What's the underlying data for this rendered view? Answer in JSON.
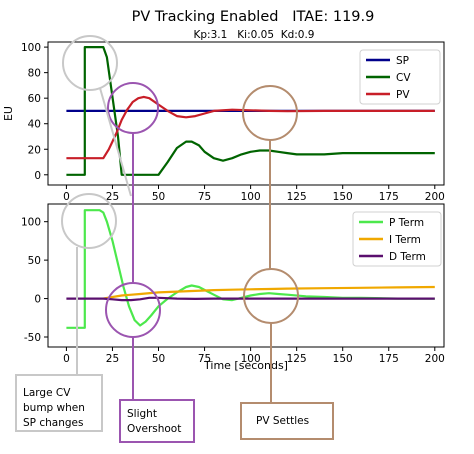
{
  "figure": {
    "title": "PV Tracking Enabled   ITAE: 119.9",
    "params": "Kp:3.1   Ki:0.05  Kd:0.9",
    "xlabel": "Time [seconds]",
    "colors": {
      "sp": "#00008b",
      "cv": "#006400",
      "pv": "#c81e28",
      "p": "#4ce84c",
      "i": "#f0a800",
      "d": "#5a0f6e",
      "gray": "#c8c8c8",
      "purple": "#9b55b0",
      "brown": "#b48c6e"
    }
  },
  "chart_data": [
    {
      "type": "line",
      "ylabel": "EU",
      "xlim": [
        -10,
        205
      ],
      "ylim": [
        -8,
        104
      ],
      "xticks": [
        0,
        25,
        50,
        75,
        100,
        125,
        150,
        175,
        200
      ],
      "yticks": [
        0,
        20,
        40,
        60,
        80,
        100
      ],
      "legend": "top-right",
      "series": [
        {
          "name": "SP",
          "color": "#00008b",
          "x": [
            0,
            20,
            20,
            200
          ],
          "y": [
            50,
            50,
            50,
            50
          ]
        },
        {
          "name": "CV",
          "color": "#006400",
          "x": [
            0,
            10,
            10,
            20,
            22,
            28,
            30,
            35,
            50,
            55,
            60,
            65,
            68,
            72,
            75,
            80,
            85,
            90,
            95,
            100,
            105,
            110,
            115,
            120,
            125,
            130,
            140,
            150,
            160,
            170,
            180,
            190,
            200
          ],
          "y": [
            0,
            0,
            100,
            100,
            92,
            30,
            0,
            0,
            0,
            10,
            21,
            26,
            26,
            23,
            18,
            13,
            11,
            13,
            16,
            18,
            19,
            19,
            18,
            17,
            16,
            16,
            16,
            17,
            17,
            17,
            17,
            17,
            17
          ]
        },
        {
          "name": "PV",
          "color": "#c81e28",
          "x": [
            0,
            18,
            20,
            23,
            27,
            30,
            33,
            36,
            39,
            42,
            45,
            50,
            55,
            60,
            65,
            70,
            75,
            80,
            90,
            100,
            110,
            120,
            140,
            160,
            180,
            200
          ],
          "y": [
            13,
            13,
            13,
            20,
            32,
            43,
            51,
            57,
            60,
            61,
            60,
            55,
            50,
            46,
            45,
            46,
            48,
            50,
            51,
            50.5,
            50,
            49.8,
            50,
            50,
            50,
            50
          ]
        }
      ]
    },
    {
      "type": "line",
      "xlim": [
        -10,
        205
      ],
      "ylim": [
        -63,
        123
      ],
      "xticks": [
        0,
        25,
        50,
        75,
        100,
        125,
        150,
        175,
        200
      ],
      "yticks": [
        -50,
        0,
        50,
        100
      ],
      "legend": "top-right",
      "series": [
        {
          "name": "P Term",
          "color": "#4ce84c",
          "x": [
            0,
            10,
            10,
            18,
            20,
            22,
            25,
            28,
            31,
            34,
            37,
            40,
            43,
            46,
            50,
            55,
            60,
            65,
            68,
            72,
            76,
            80,
            85,
            90,
            95,
            100,
            105,
            110,
            115,
            120,
            130,
            140,
            150,
            160,
            180,
            200
          ],
          "y": [
            -38,
            -38,
            115,
            115,
            112,
            100,
            75,
            45,
            15,
            -10,
            -28,
            -35,
            -30,
            -22,
            -10,
            0,
            8,
            15,
            17,
            15,
            10,
            5,
            -1,
            -2,
            1,
            4,
            6,
            7,
            6,
            5,
            3,
            2,
            1,
            1,
            0,
            0
          ]
        },
        {
          "name": "I Term",
          "color": "#f0a800",
          "x": [
            20,
            25,
            30,
            40,
            50,
            60,
            70,
            80,
            90,
            100,
            110,
            120,
            140,
            160,
            180,
            200
          ],
          "y": [
            0,
            2,
            4,
            6,
            8,
            9,
            10,
            11,
            11.5,
            12,
            12.5,
            13,
            13.5,
            14,
            14.5,
            15
          ]
        },
        {
          "name": "D Term",
          "color": "#5a0f6e",
          "x": [
            0,
            20,
            25,
            30,
            35,
            40,
            45,
            50,
            60,
            70,
            80,
            90,
            100,
            120,
            200
          ],
          "y": [
            0,
            0,
            -1,
            -2,
            -2,
            -1,
            1,
            1,
            0,
            -0.5,
            0,
            0,
            0,
            0,
            0
          ]
        }
      ]
    }
  ],
  "annotations": {
    "cv_bump": [
      "Large CV",
      "bump when",
      "SP changes"
    ],
    "overshoot": [
      "Slight",
      "Overshoot"
    ],
    "settles": [
      "PV Settles"
    ]
  }
}
